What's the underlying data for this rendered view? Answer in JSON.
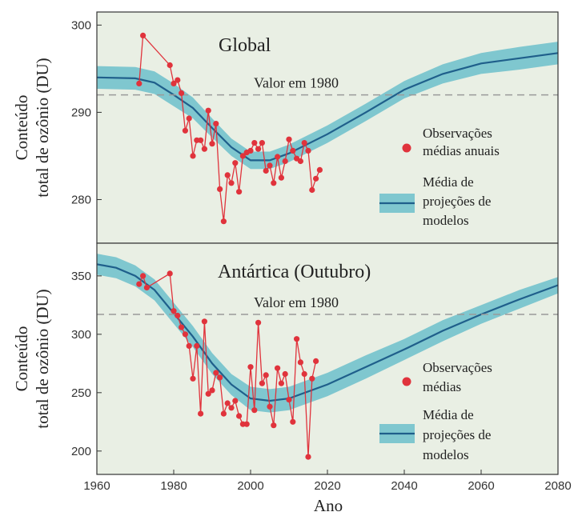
{
  "xlabel": "Ano",
  "x_ticks": [
    1960,
    1980,
    2000,
    2020,
    2040,
    2060,
    2080
  ],
  "colors": {
    "background": "#e9efe4",
    "band": "#7fc7cf",
    "mean_line": "#1f5f8b",
    "observations": "#e0333c",
    "reference_line": "#9a9a9a"
  },
  "chart_data": [
    {
      "type": "line",
      "title": "Global",
      "ylabel_line1": "Conteúdo",
      "ylabel_line2": "total de ozônio (DU)",
      "xlim": [
        1960,
        2080
      ],
      "ylim": [
        275,
        301.5
      ],
      "y_ticks": [
        280,
        290,
        300
      ],
      "grid": false,
      "legend_position": "right",
      "reference": {
        "label": "Valor em 1980",
        "value": 292
      },
      "legend": {
        "obs_line1": "Observações",
        "obs_line2": "médias anuais",
        "proj_line1": "Média de",
        "proj_line2": "projeções de",
        "proj_line3": "modelos"
      },
      "projection_x": [
        1960,
        1970,
        1975,
        1980,
        1985,
        1990,
        1995,
        2000,
        2005,
        2010,
        2020,
        2030,
        2040,
        2050,
        2060,
        2070,
        2080
      ],
      "projection_mean": [
        294.0,
        293.9,
        293.4,
        292.0,
        290.5,
        288.2,
        286.0,
        284.5,
        284.5,
        285.3,
        287.5,
        290.0,
        292.6,
        294.4,
        295.6,
        296.2,
        296.8
      ],
      "projection_halfwidth": [
        1.3,
        1.3,
        1.3,
        1.3,
        1.2,
        1.1,
        1.0,
        1.0,
        1.0,
        1.0,
        1.0,
        1.0,
        1.0,
        1.1,
        1.2,
        1.3,
        1.3
      ],
      "observations": {
        "x": [
          1971,
          1972,
          1979,
          1980,
          1981,
          1982,
          1983,
          1984,
          1985,
          1986,
          1987,
          1988,
          1989,
          1990,
          1991,
          1992,
          1993,
          1994,
          1995,
          1996,
          1997,
          1998,
          1999,
          2000,
          2001,
          2002,
          2003,
          2004,
          2005,
          2006,
          2007,
          2008,
          2009,
          2010,
          2011,
          2012,
          2013,
          2014,
          2015,
          2016,
          2017,
          2018
        ],
        "y": [
          293.3,
          298.8,
          295.4,
          293.3,
          293.7,
          292.2,
          287.9,
          289.3,
          285.0,
          286.8,
          286.8,
          285.8,
          290.2,
          286.4,
          288.7,
          281.2,
          277.5,
          282.8,
          281.9,
          284.2,
          280.9,
          285.0,
          285.4,
          285.6,
          286.5,
          285.8,
          286.5,
          283.3,
          283.9,
          281.9,
          284.9,
          282.5,
          284.4,
          286.9,
          285.6,
          284.7,
          284.4,
          286.5,
          285.6,
          281.1,
          282.4,
          283.4
        ]
      }
    },
    {
      "type": "line",
      "title": "Antártica (Outubro)",
      "ylabel_line1": "Conteúdo",
      "ylabel_line2": "total de ozônio (DU)",
      "xlim": [
        1960,
        2080
      ],
      "ylim": [
        180,
        378
      ],
      "y_ticks": [
        200,
        250,
        300,
        350
      ],
      "grid": false,
      "legend_position": "right",
      "reference": {
        "label": "Valor em 1980",
        "value": 317
      },
      "legend": {
        "obs_line1": "Observações",
        "obs_line2": "médias",
        "proj_line1": "Média de",
        "proj_line2": "projeções de",
        "proj_line3": "modelos"
      },
      "projection_x": [
        1960,
        1965,
        1970,
        1975,
        1980,
        1985,
        1990,
        1995,
        2000,
        2005,
        2010,
        2020,
        2030,
        2040,
        2050,
        2060,
        2070,
        2080
      ],
      "projection_mean": [
        360,
        357,
        350,
        338,
        318,
        298,
        275,
        257,
        245,
        243,
        245,
        257,
        272,
        287,
        303,
        317,
        330,
        342
      ],
      "projection_halfwidth": [
        9,
        9,
        9,
        9,
        9,
        9,
        9,
        9,
        10,
        10,
        10,
        10,
        10,
        9,
        9,
        8,
        8,
        7
      ],
      "observations": {
        "x": [
          1971,
          1972,
          1973,
          1979,
          1980,
          1981,
          1982,
          1983,
          1984,
          1985,
          1986,
          1987,
          1988,
          1989,
          1990,
          1991,
          1992,
          1993,
          1994,
          1995,
          1996,
          1997,
          1998,
          1999,
          2000,
          2001,
          2002,
          2003,
          2004,
          2005,
          2006,
          2007,
          2008,
          2009,
          2010,
          2011,
          2012,
          2013,
          2014,
          2015,
          2016,
          2017
        ],
        "y": [
          343,
          350,
          340,
          352,
          320,
          316,
          306,
          300,
          290,
          262,
          290,
          232,
          311,
          249,
          252,
          267,
          263,
          232,
          241,
          237,
          243,
          230,
          223,
          223,
          272,
          235,
          310,
          258,
          265,
          238,
          222,
          271,
          258,
          266,
          244,
          225,
          296,
          276,
          266,
          195,
          262,
          277
        ]
      }
    }
  ]
}
